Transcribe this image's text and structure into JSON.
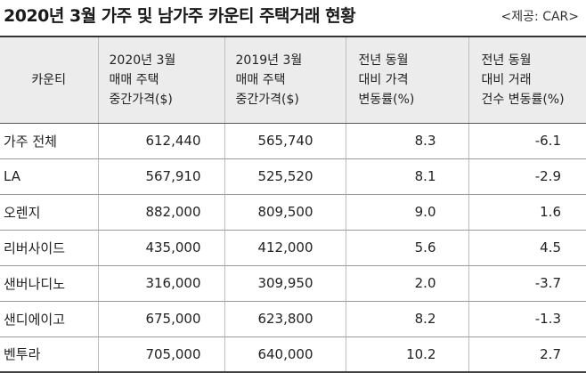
{
  "title": "2020년 3월 가주 및 남가주 카운티 주택거래 현황",
  "source": "<제공: CAR>",
  "headers": [
    [
      "카운티"
    ],
    [
      "2020년 3월",
      "매매 주택",
      "중간가격($)"
    ],
    [
      "2019년 3월",
      "매매 주택",
      "중간가격($)"
    ],
    [
      "전년 동월",
      "대비 가격",
      "변동률(%)"
    ],
    [
      "전년 동월",
      "대비 거래",
      "건수 변동률(%)"
    ]
  ],
  "rows": [
    {
      "county": "가주 전체",
      "price_2020": "612,440",
      "price_2019": "565,740",
      "price_change": "8.3",
      "volume_change": "-6.1"
    },
    {
      "county": "LA",
      "price_2020": "567,910",
      "price_2019": "525,520",
      "price_change": "8.1",
      "volume_change": "-2.9"
    },
    {
      "county": "오렌지",
      "price_2020": "882,000",
      "price_2019": "809,500",
      "price_change": "9.0",
      "volume_change": "1.6"
    },
    {
      "county": "리버사이드",
      "price_2020": "435,000",
      "price_2019": "412,000",
      "price_change": "5.6",
      "volume_change": "4.5"
    },
    {
      "county": "샌버나디노",
      "price_2020": "316,000",
      "price_2019": "309,950",
      "price_change": "2.0",
      "volume_change": "-3.7"
    },
    {
      "county": "샌디에이고",
      "price_2020": "675,000",
      "price_2019": "623,800",
      "price_change": "8.2",
      "volume_change": "-1.3"
    },
    {
      "county": "벤투라",
      "price_2020": "705,000",
      "price_2019": "640,000",
      "price_change": "10.2",
      "volume_change": "2.7"
    }
  ]
}
